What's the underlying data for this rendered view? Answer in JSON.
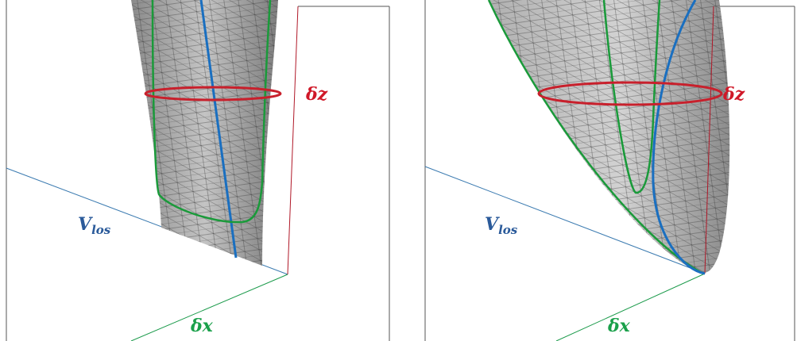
{
  "panels": [
    {
      "v_label": "V",
      "v_sub": "los",
      "z_label": "δz",
      "x_label": "δx"
    },
    {
      "v_label": "V",
      "v_sub": "los",
      "z_label": "δz",
      "x_label": "δx"
    }
  ]
}
